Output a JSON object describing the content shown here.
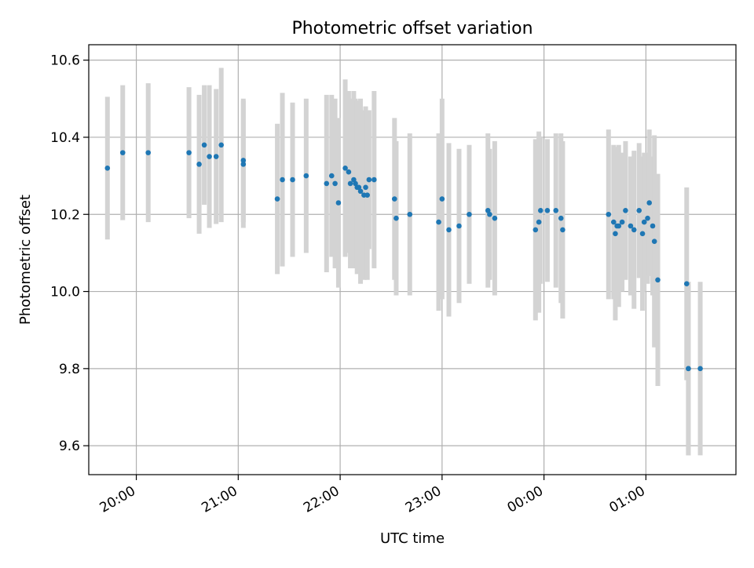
{
  "chart_data": {
    "type": "scatter",
    "title": "Photometric offset variation",
    "xlabel": "UTC time",
    "ylabel": "Photometric offset",
    "grid": true,
    "xlim": [
      "19:32",
      "01:53"
    ],
    "ylim": [
      9.525,
      10.64
    ],
    "xticks": [
      "20:00",
      "21:00",
      "22:00",
      "23:00",
      "00:00",
      "01:00"
    ],
    "yticks": [
      "9.6",
      "9.8",
      "10.0",
      "10.2",
      "10.4",
      "10.6"
    ],
    "colors": {
      "point": "#1f77b4",
      "errorbar": "#d3d3d3",
      "grid": "#b0b0b0",
      "axes": "#000000"
    },
    "series": [
      {
        "x": [
          "19:43",
          "19:52",
          "20:07",
          "20:31",
          "20:37",
          "20:40",
          "20:43",
          "20:47",
          "20:50",
          "21:03",
          "21:03",
          "21:23",
          "21:26",
          "21:32",
          "21:40",
          "21:52",
          "21:55",
          "21:57",
          "21:59",
          "22:03",
          "22:05",
          "22:06",
          "22:08",
          "22:09",
          "22:10",
          "22:11",
          "22:12",
          "22:14",
          "22:15",
          "22:16",
          "22:17",
          "22:20",
          "22:32",
          "22:33",
          "22:41",
          "22:58",
          "23:00",
          "23:04",
          "23:10",
          "23:16",
          "23:27",
          "23:28",
          "23:31",
          "23:55",
          "23:57",
          "23:58",
          "00:02",
          "00:07",
          "00:10",
          "00:11",
          "00:38",
          "00:41",
          "00:42",
          "00:43",
          "00:44",
          "00:46",
          "00:48",
          "00:51",
          "00:53",
          "00:56",
          "00:58",
          "00:59",
          "01:01",
          "01:02",
          "01:04",
          "01:05",
          "01:07",
          "01:24",
          "01:25",
          "01:25",
          "01:32"
        ],
        "y": [
          10.32,
          10.36,
          10.36,
          10.36,
          10.33,
          10.38,
          10.35,
          10.35,
          10.38,
          10.34,
          10.33,
          10.24,
          10.29,
          10.29,
          10.3,
          10.28,
          10.3,
          10.28,
          10.23,
          10.32,
          10.31,
          10.28,
          10.29,
          10.28,
          10.27,
          10.27,
          10.26,
          10.25,
          10.27,
          10.25,
          10.29,
          10.29,
          10.24,
          10.19,
          10.2,
          10.18,
          10.24,
          10.16,
          10.17,
          10.2,
          10.21,
          10.2,
          10.19,
          10.16,
          10.18,
          10.21,
          10.21,
          10.21,
          10.19,
          10.16,
          10.2,
          10.18,
          10.15,
          10.17,
          10.17,
          10.18,
          10.21,
          10.17,
          10.16,
          10.21,
          10.15,
          10.18,
          10.19,
          10.23,
          10.17,
          10.13,
          10.03,
          10.02,
          9.8,
          9.8,
          9.8
        ],
        "yerr": [
          0.185,
          0.175,
          0.18,
          0.17,
          0.18,
          0.155,
          0.185,
          0.175,
          0.2,
          0.16,
          0.165,
          0.195,
          0.225,
          0.2,
          0.2,
          0.23,
          0.21,
          0.22,
          0.22,
          0.23,
          0.21,
          0.22,
          0.23,
          0.22,
          0.225,
          0.21,
          0.24,
          0.22,
          0.21,
          0.22,
          0.18,
          0.23,
          0.21,
          0.2,
          0.21,
          0.23,
          0.26,
          0.225,
          0.2,
          0.18,
          0.2,
          0.17,
          0.2,
          0.235,
          0.235,
          0.19,
          0.185,
          0.2,
          0.22,
          0.23,
          0.22,
          0.2,
          0.225,
          0.2,
          0.21,
          0.18,
          0.18,
          0.18,
          0.205,
          0.175,
          0.2,
          0.18,
          0.17,
          0.19,
          0.18,
          0.275,
          0.275,
          0.25,
          0.225,
          0.225,
          0.225
        ]
      }
    ]
  }
}
